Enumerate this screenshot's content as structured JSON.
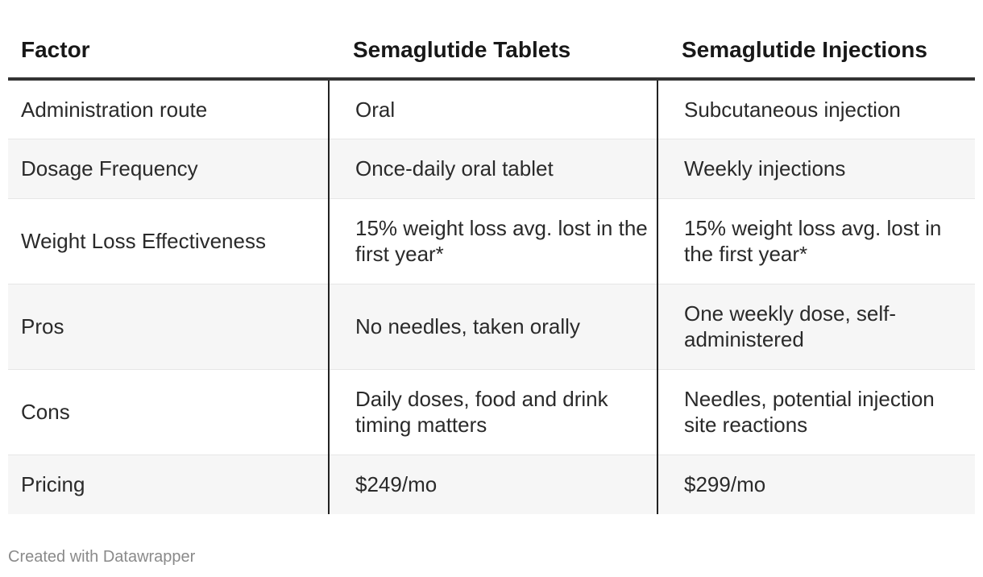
{
  "table": {
    "headers": [
      "Factor",
      "Semaglutide Tablets",
      "Semaglutide Injections"
    ],
    "rows": [
      [
        "Administration route",
        "Oral",
        "Subcutaneous injection"
      ],
      [
        "Dosage Frequency",
        "Once-daily oral tablet",
        "Weekly injections"
      ],
      [
        "Weight Loss Effectiveness",
        "15% weight loss avg. lost in the first year*",
        "15% weight loss avg. lost in the first year*"
      ],
      [
        "Pros",
        "No needles, taken orally",
        "One weekly dose, self-administered"
      ],
      [
        "Cons",
        "Daily doses, food and drink timing matters",
        "Needles, potential injection site reactions"
      ],
      [
        "Pricing",
        "$249/mo",
        "$299/mo"
      ]
    ]
  },
  "footer": {
    "credit": "Created with Datawrapper"
  }
}
